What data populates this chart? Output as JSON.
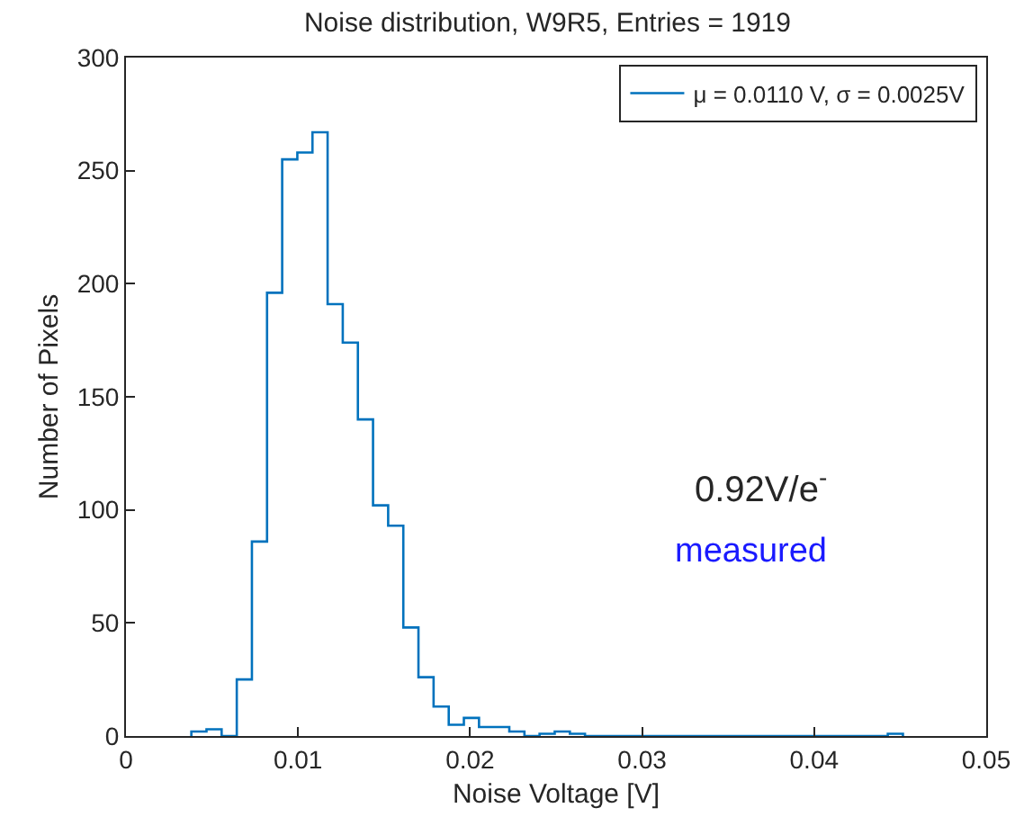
{
  "chart_data": {
    "type": "histogram",
    "title": "Noise distribution, W9R5, Entries = 1919",
    "xlabel": "Noise Voltage [V]",
    "ylabel": "Number of Pixels",
    "bins": [
      0.0038,
      0.00468,
      0.00556,
      0.00644,
      0.00732,
      0.0082,
      0.00908,
      0.00996,
      0.01084,
      0.01172,
      0.0126,
      0.01348,
      0.01436,
      0.01524,
      0.01612,
      0.017,
      0.01788,
      0.01876,
      0.01964,
      0.02052,
      0.0214,
      0.02228,
      0.02316,
      0.02404,
      0.02492,
      0.0258,
      0.02668,
      0.02756,
      0.02844,
      0.02932,
      0.0302,
      0.03108,
      0.03196,
      0.03284,
      0.03372,
      0.0346,
      0.03548,
      0.03636,
      0.03724,
      0.03812,
      0.039,
      0.03988,
      0.04076,
      0.04164,
      0.04252,
      0.0434,
      0.04428,
      0.04516
    ],
    "series": [
      {
        "name": "μ = 0.0110 V, σ = 0.0025V",
        "color": "#0072bd",
        "values": [
          2,
          3,
          0,
          25,
          86,
          196,
          255,
          258,
          267,
          191,
          174,
          140,
          102,
          93,
          48,
          26,
          13,
          5,
          8,
          4,
          4,
          2,
          0,
          1,
          2,
          1,
          0,
          0,
          0,
          0,
          0,
          0,
          0,
          0,
          0,
          0,
          0,
          0,
          0,
          0,
          0,
          0,
          0,
          0,
          0,
          0,
          1
        ]
      }
    ],
    "xlim": [
      0,
      0.05
    ],
    "xticks": [
      0,
      0.01,
      0.02,
      0.03,
      0.04,
      0.05
    ],
    "ylim": [
      0,
      300
    ],
    "yticks": [
      0,
      50,
      100,
      150,
      200,
      250,
      300
    ],
    "annotations": [
      "0.92V/e$^{-}$",
      "measured"
    ],
    "legend": "top right",
    "grid": false,
    "marker": "none",
    "line_style": "solid"
  }
}
